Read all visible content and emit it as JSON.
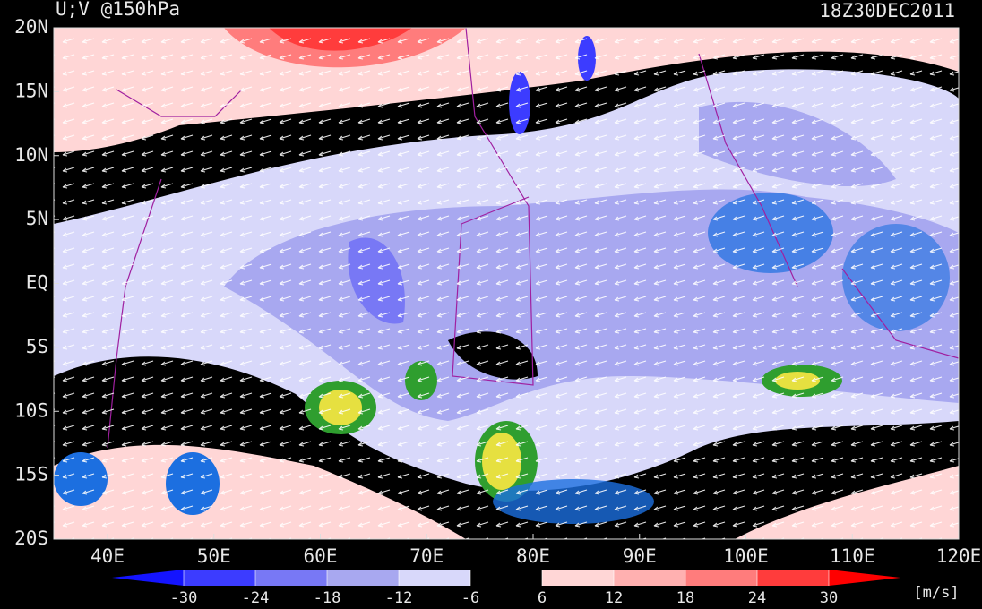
{
  "header": {
    "title": "U;V @150hPa",
    "timestamp": "18Z30DEC2011"
  },
  "map": {
    "lat_labels": [
      "20N",
      "15N",
      "10N",
      "5N",
      "EQ",
      "5S",
      "10S",
      "15S",
      "20S"
    ],
    "lon_labels": [
      "40E",
      "50E",
      "60E",
      "70E",
      "80E",
      "90E",
      "100E",
      "110E",
      "120E"
    ]
  },
  "colorbar": {
    "ticks": [
      -30,
      -24,
      -18,
      -12,
      -6,
      6,
      12,
      18,
      24,
      30
    ],
    "colors": [
      "#1414ff",
      "#3c3cff",
      "#7878f5",
      "#a8a8f0",
      "#d8d8fa",
      "#000000",
      "#ffd6d6",
      "#ffb0b0",
      "#ff7c7c",
      "#ff3c3c",
      "#ff0000"
    ],
    "unit": "[m/s]"
  }
}
